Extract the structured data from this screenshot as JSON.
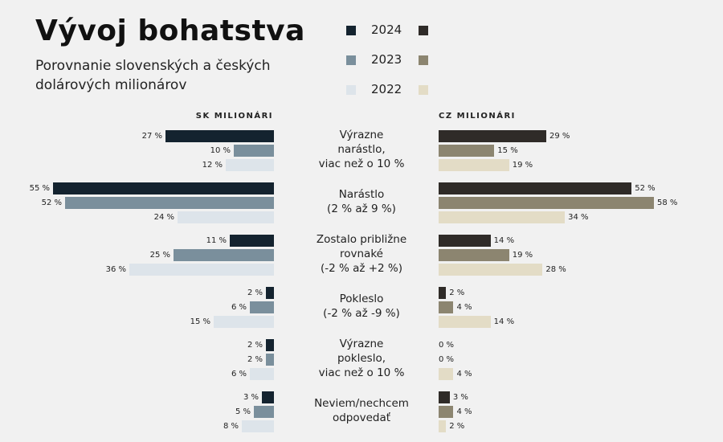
{
  "title": "Vývoj bohatstva",
  "subtitle": "Porovnanie slovenských a českých dolárových milionárov",
  "legend": [
    {
      "label": "2024",
      "sk_color": "#14232f",
      "cz_color": "#2f2b28"
    },
    {
      "label": "2023",
      "sk_color": "#7a8f9c",
      "cz_color": "#8c8570"
    },
    {
      "label": "2022",
      "sk_color": "#dde4ea",
      "cz_color": "#e3dcc6"
    }
  ],
  "chart_data": {
    "type": "bar",
    "orientation": "horizontal",
    "unit": "%",
    "categories": [
      "Výrazne narástlo, viac než o 10 %",
      "Narástlo (2 % až 9 %)",
      "Zostalo približne rovnaké (-2 % až +2 %)",
      "Pokleslo (-2 % až -9 %)",
      "Výrazne pokleslo, viac než o 10 %",
      "Neviem/nechcem odpovedať"
    ],
    "category_lines": [
      [
        "Výrazne",
        "narástlo,",
        "viac než o 10 %"
      ],
      [
        "Narástlo",
        "(2 % až 9 %)"
      ],
      [
        "Zostalo približne",
        "rovnaké",
        "(-2 % až +2 %)"
      ],
      [
        "Pokleslo",
        "(-2 % až -9 %)"
      ],
      [
        "Výrazne",
        "pokleslo,",
        "viac než o 10 %"
      ],
      [
        "Neviem/nechcem",
        "odpovedať"
      ]
    ],
    "panels": [
      {
        "title": "SK MILIONÁRI",
        "series": [
          {
            "name": "2024",
            "values": [
              27,
              55,
              11,
              2,
              2,
              3
            ]
          },
          {
            "name": "2023",
            "values": [
              10,
              52,
              25,
              6,
              2,
              5
            ]
          },
          {
            "name": "2022",
            "values": [
              12,
              24,
              36,
              15,
              6,
              8
            ]
          }
        ]
      },
      {
        "title": "CZ MILIONÁRI",
        "series": [
          {
            "name": "2024",
            "values": [
              29,
              52,
              14,
              2,
              0,
              3
            ]
          },
          {
            "name": "2023",
            "values": [
              15,
              58,
              19,
              4,
              0,
              4
            ]
          },
          {
            "name": "2022",
            "values": [
              19,
              34,
              28,
              14,
              4,
              2
            ]
          }
        ]
      }
    ]
  }
}
